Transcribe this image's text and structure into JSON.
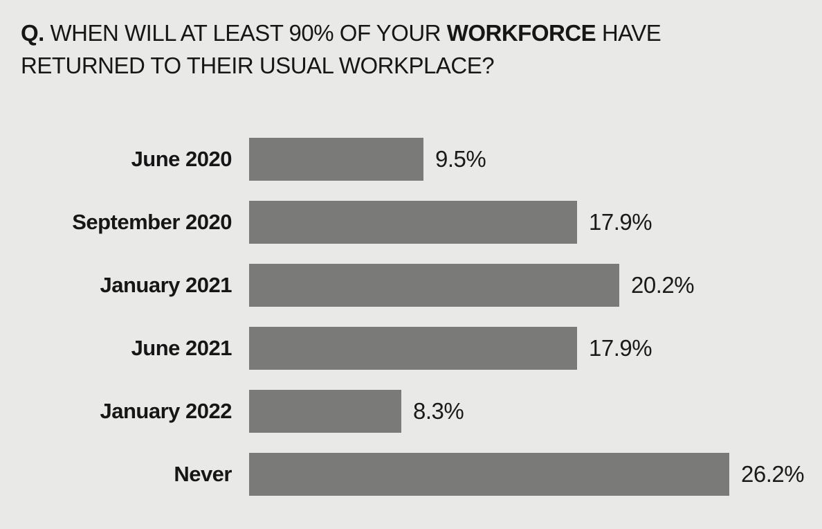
{
  "title_parts": {
    "prefix": "Q.",
    "lead": " WHEN WILL AT LEAST 90% OF YOUR ",
    "emphasis": "WORKFORCE",
    "tail": " HAVE RETURNED TO THEIR USUAL WORKPLACE?"
  },
  "chart_data": {
    "type": "bar",
    "orientation": "horizontal",
    "title": "Q. WHEN WILL AT LEAST 90% OF YOUR WORKFORCE HAVE RETURNED TO THEIR USUAL WORKPLACE?",
    "categories": [
      "June 2020",
      "September 2020",
      "January 2021",
      "June 2021",
      "January 2022",
      "Never"
    ],
    "values": [
      9.5,
      17.9,
      20.2,
      17.9,
      8.3,
      26.2
    ],
    "value_labels": [
      "9.5%",
      "17.9%",
      "20.2%",
      "17.9%",
      "8.3%",
      "26.2%"
    ],
    "xlim": [
      0,
      26.2
    ],
    "grid": false,
    "legend": false,
    "bar_color": "#7a7a79",
    "background_color": "#e9e9e7",
    "text_color": "#1a1a1a"
  }
}
